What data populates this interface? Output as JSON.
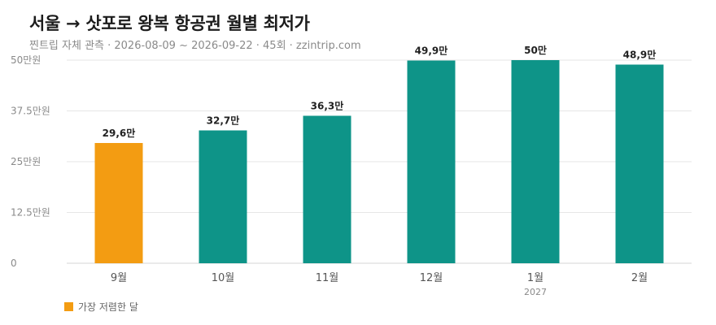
{
  "header": {
    "title": "서울 → 삿포로 왕복 항공권 월별 최저가",
    "subtitle": "찐트립 자체 관측 · 2026-08-09 ~ 2026-09-22 · 45회 · zzintrip.com"
  },
  "colors": {
    "highlight": "#f39c12",
    "bar": "#0e9488",
    "grid": "#e6e6e6",
    "axis_text": "#8a8a8a",
    "label_text": "#222222"
  },
  "legend": {
    "label": "가장 저렴한 달"
  },
  "chart_data": {
    "type": "bar",
    "categories": [
      "9월",
      "10월",
      "11월",
      "12월",
      "1월",
      "2월"
    ],
    "category_sublabels": [
      "",
      "",
      "",
      "",
      "2027",
      ""
    ],
    "values": [
      29.6,
      32.7,
      36.3,
      49.9,
      50,
      48.9
    ],
    "value_labels": [
      "29,6만",
      "32,7만",
      "36,3만",
      "49,9만",
      "50만",
      "48,9만"
    ],
    "highlight_index": 0,
    "ylim": [
      0,
      50
    ],
    "yticks": [
      0,
      12.5,
      25,
      37.5,
      50
    ],
    "ytick_labels": [
      "0",
      "12.5만원",
      "25만원",
      "37.5만원",
      "50만원"
    ],
    "grid": true,
    "legend_placement": "bottom-left"
  }
}
